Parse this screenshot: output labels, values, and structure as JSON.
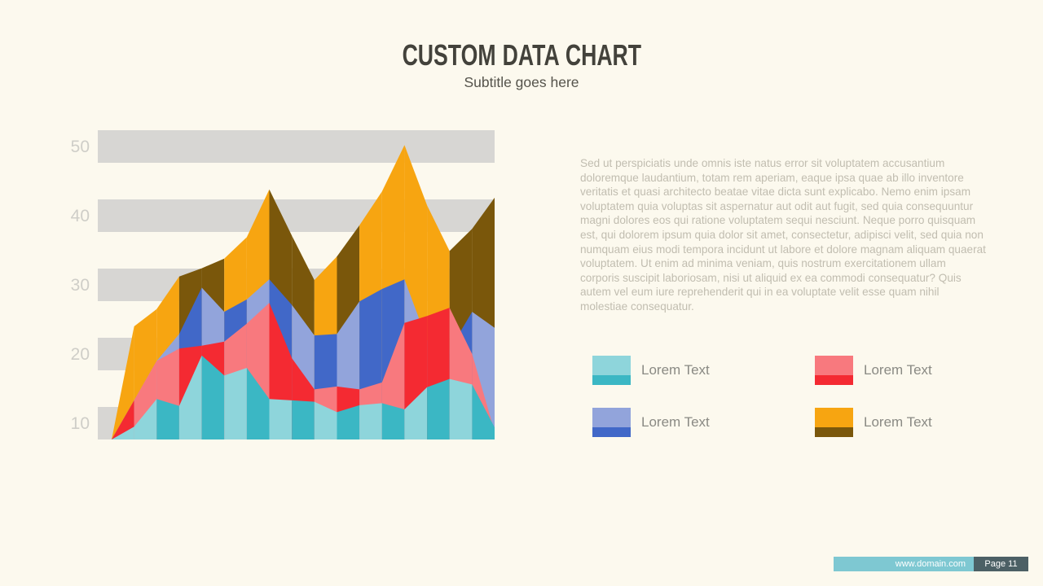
{
  "slide": {
    "title": "CUSTOM DATA CHART",
    "subtitle": "Subtitle goes here",
    "body_text": "Sed ut perspiciatis unde omnis iste natus error sit voluptatem accusantium doloremque laudantium, totam rem aperiam, eaque ipsa quae ab illo inventore veritatis et quasi architecto beatae vitae dicta sunt explicabo. Nemo enim ipsam voluptatem quia voluptas sit aspernatur aut odit aut fugit, sed quia consequuntur magni dolores eos qui ratione voluptatem sequi nesciunt. Neque porro quisquam est, qui dolorem ipsum quia dolor sit amet, consectetur, adipisci velit, sed quia non numquam eius modi tempora incidunt ut labore et dolore magnam aliquam quaerat voluptatem. Ut enim ad minima veniam, quis nostrum exercitationem ullam corporis suscipit laboriosam, nisi ut aliquid ex ea commodi consequatur? Quis autem vel eum iure reprehenderit qui in ea voluptate velit esse quam nihil molestiae consequatur.",
    "background_color": "#FCF9EE",
    "footer": {
      "url": "www.domain.com",
      "page": "Page 11",
      "url_bar_color": "#7EC8D2",
      "page_badge_color": "#4C6065"
    }
  },
  "legend": {
    "items": [
      {
        "label": "Lorem Text",
        "series": "teal",
        "color_light": "#8ED5DB",
        "color_dark": "#3BB7C4"
      },
      {
        "label": "Lorem Text",
        "series": "red",
        "color_light": "#F8797E",
        "color_dark": "#F42A32"
      },
      {
        "label": "Lorem Text",
        "series": "blue",
        "color_light": "#92A4DB",
        "color_dark": "#4168C8"
      },
      {
        "label": "Lorem Text",
        "series": "orange",
        "color_light": "#F7A511",
        "color_dark": "#7A570B"
      }
    ]
  },
  "chart_data": {
    "type": "area",
    "style": "overlapping faceted low-poly areas, painted back to front",
    "title": "CUSTom DATA CHART (slide title)",
    "xlabel": "",
    "ylabel": "",
    "x": [
      1,
      2,
      3,
      4,
      5,
      6,
      7,
      8,
      9,
      10,
      11,
      12,
      13,
      14,
      15,
      16,
      17,
      18
    ],
    "y_ticks": [
      10,
      20,
      30,
      40,
      50
    ],
    "ylim": [
      7.5,
      54
    ],
    "grid": "horizontal gray bands centered on each tick",
    "band_color": "#D7D6D3",
    "tick_label_color": "#CFCEC8",
    "legend_position": "right panel, 2x2 grid",
    "series": [
      {
        "name": "Lorem Text (orange)",
        "color_light": "#F7A511",
        "color_dark": "#7A570B",
        "values": [
          7.5,
          24.0,
          26.5,
          31.2,
          32.4,
          33.8,
          36.9,
          43.8,
          37.1,
          30.7,
          34.1,
          38.6,
          43.5,
          50.2,
          41.5,
          34.9,
          38.1,
          42.6
        ],
        "facet_shades": [
          "l",
          "l",
          "l",
          "d",
          "d",
          "l",
          "l",
          "d",
          "d",
          "l",
          "d",
          "l",
          "l",
          "l",
          "l",
          "d",
          "d"
        ]
      },
      {
        "name": "Lorem Text (blue)",
        "color_light": "#92A4DB",
        "color_dark": "#4168C8",
        "values": [
          7.5,
          13.3,
          19.0,
          22.9,
          29.6,
          26.1,
          27.9,
          30.8,
          27.1,
          22.7,
          22.9,
          27.6,
          29.4,
          30.8,
          22.0,
          20.6,
          26.1,
          23.8
        ],
        "facet_shades": [
          "l",
          "l",
          "l",
          "d",
          "l",
          "d",
          "l",
          "d",
          "l",
          "d",
          "l",
          "d",
          "d",
          "l",
          "l",
          "d",
          "l"
        ]
      },
      {
        "name": "Lorem Text (red)",
        "color_light": "#F8797E",
        "color_dark": "#F42A32",
        "values": [
          7.5,
          13.3,
          19.0,
          20.8,
          21.2,
          21.8,
          24.4,
          27.4,
          19.4,
          14.9,
          15.3,
          14.9,
          15.9,
          24.5,
          25.5,
          26.7,
          20.0,
          8.8
        ],
        "facet_shades": [
          "d",
          "l",
          "l",
          "d",
          "d",
          "l",
          "l",
          "d",
          "d",
          "l",
          "d",
          "l",
          "l",
          "d",
          "d",
          "l",
          "l"
        ]
      },
      {
        "name": "Lorem Text (teal)",
        "color_light": "#8ED5DB",
        "color_dark": "#3BB7C4",
        "values": [
          7.5,
          9.5,
          13.5,
          12.5,
          19.8,
          16.9,
          18.0,
          13.5,
          13.3,
          13.1,
          11.6,
          12.6,
          12.9,
          12.0,
          15.2,
          16.4,
          15.6,
          9.4
        ],
        "facet_shades": [
          "l",
          "l",
          "d",
          "l",
          "d",
          "l",
          "d",
          "l",
          "d",
          "l",
          "d",
          "l",
          "d",
          "l",
          "d",
          "l",
          "d"
        ]
      }
    ]
  }
}
